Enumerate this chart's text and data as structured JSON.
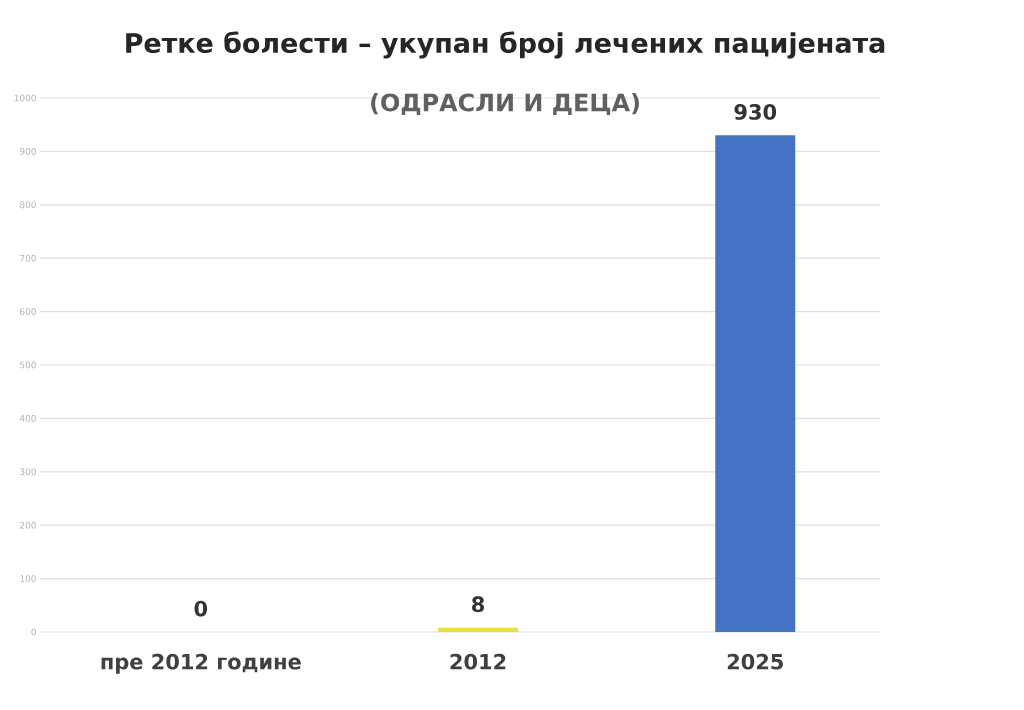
{
  "chart_data": {
    "type": "bar",
    "title": "Ретке болести – укупан број лечених пацијената",
    "subtitle": "(ОДРАСЛИ И ДЕЦА)",
    "categories": [
      "пре 2012 године",
      "2012",
      "2025"
    ],
    "values": [
      0,
      8,
      930
    ],
    "colors": [
      "#e8d84a",
      "#e8e040",
      "#4472c4"
    ],
    "ylim": [
      0,
      1000
    ],
    "yticks": [
      0,
      100,
      200,
      300,
      400,
      500,
      600,
      700,
      800,
      900,
      1000
    ],
    "grid": "y",
    "data_labels": true
  }
}
